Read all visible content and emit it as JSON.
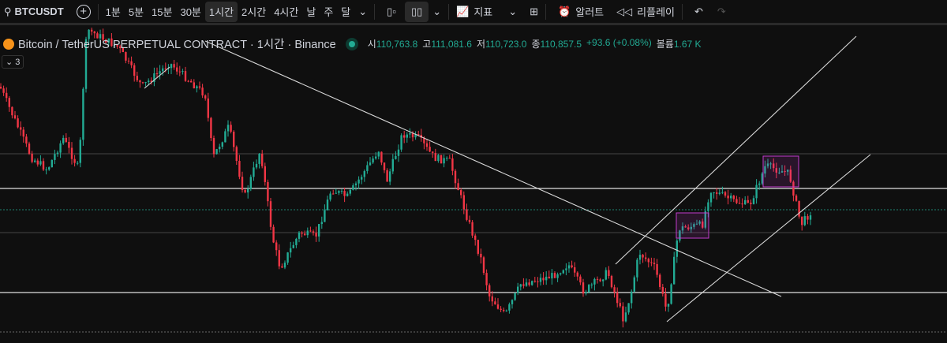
{
  "toolbar": {
    "symbol": "BTCUSDT",
    "intervals": [
      "1분",
      "5분",
      "15분",
      "30분",
      "1시간",
      "2시간",
      "4시간",
      "날",
      "주",
      "달"
    ],
    "active_interval": "1시간",
    "indicators": "지표",
    "alert": "알러트",
    "replay": "리플레이"
  },
  "legend": {
    "title": "Bitcoin / TetherUS PERPETUAL CONTRACT · 1시간 · Binance",
    "open_label": "시",
    "open": "110,763.8",
    "high_label": "고",
    "high": "111,081.6",
    "low_label": "저",
    "low": "110,723.0",
    "close_label": "종",
    "close": "110,857.5",
    "change": "+93.6 (+0.08%)",
    "volume_label": "볼륨",
    "volume": "1.67 K",
    "collapse_count": "3"
  },
  "colors": {
    "up": "#22ab94",
    "down": "#f23645",
    "background": "#0f0f0f",
    "drawing": "#d9d9d9",
    "box": "#c13ccc"
  }
}
